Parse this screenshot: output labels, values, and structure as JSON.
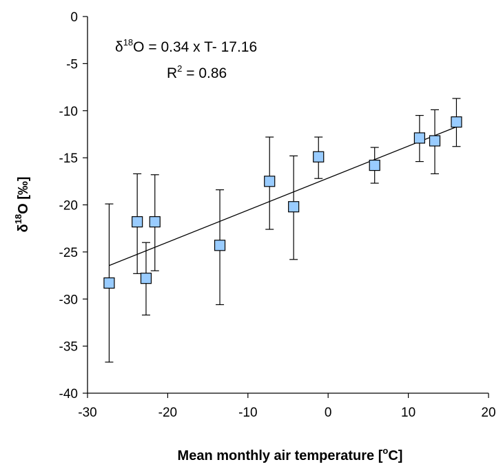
{
  "chart_data": {
    "type": "scatter",
    "xlabel": {
      "main": "Mean monthly air temperature [",
      "sup": "o",
      "end": "C]"
    },
    "ylabel": {
      "delta": "δ",
      "sup": "18",
      "main": "O [‰]"
    },
    "xlim": [
      -30,
      20
    ],
    "ylim": [
      -40,
      0
    ],
    "xticks": [
      -30,
      -20,
      -10,
      0,
      10,
      20
    ],
    "yticks": [
      0,
      -5,
      -10,
      -15,
      -20,
      -25,
      -30,
      -35,
      -40
    ],
    "grid": false,
    "legend": "none",
    "marker_color": "#99ccff",
    "marker_edge": "#000000",
    "points": [
      {
        "x": -27.3,
        "y": -28.3,
        "err_low": -36.7,
        "err_high": -19.9
      },
      {
        "x": -23.8,
        "y": -21.8,
        "err_low": -27.3,
        "err_high": -16.7
      },
      {
        "x": -22.7,
        "y": -27.8,
        "err_low": -31.7,
        "err_high": -24.0
      },
      {
        "x": -21.6,
        "y": -21.8,
        "err_low": -27.0,
        "err_high": -16.8
      },
      {
        "x": -13.5,
        "y": -24.3,
        "err_low": -30.6,
        "err_high": -18.4
      },
      {
        "x": -7.3,
        "y": -17.5,
        "err_low": -22.6,
        "err_high": -12.8
      },
      {
        "x": -4.3,
        "y": -20.2,
        "err_low": -25.8,
        "err_high": -14.8
      },
      {
        "x": -1.2,
        "y": -14.9,
        "err_low": -17.2,
        "err_high": -12.8
      },
      {
        "x": 5.8,
        "y": -15.8,
        "err_low": -17.7,
        "err_high": -13.9
      },
      {
        "x": 11.4,
        "y": -12.9,
        "err_low": -15.4,
        "err_high": -10.5
      },
      {
        "x": 13.3,
        "y": -13.2,
        "err_low": -16.7,
        "err_high": -9.9
      },
      {
        "x": 16.0,
        "y": -11.2,
        "err_low": -13.8,
        "err_high": -8.7
      }
    ],
    "fit_line": {
      "slope": 0.34,
      "intercept": -17.16,
      "x_range": [
        -27.3,
        16.0
      ]
    },
    "annotation": {
      "eq_delta": "δ",
      "eq_sup": "18",
      "eq_rest": "O = 0.34 x T- 17.16",
      "r2_main": "R",
      "r2_sup": "2",
      "r2_rest": " = 0.86"
    }
  }
}
